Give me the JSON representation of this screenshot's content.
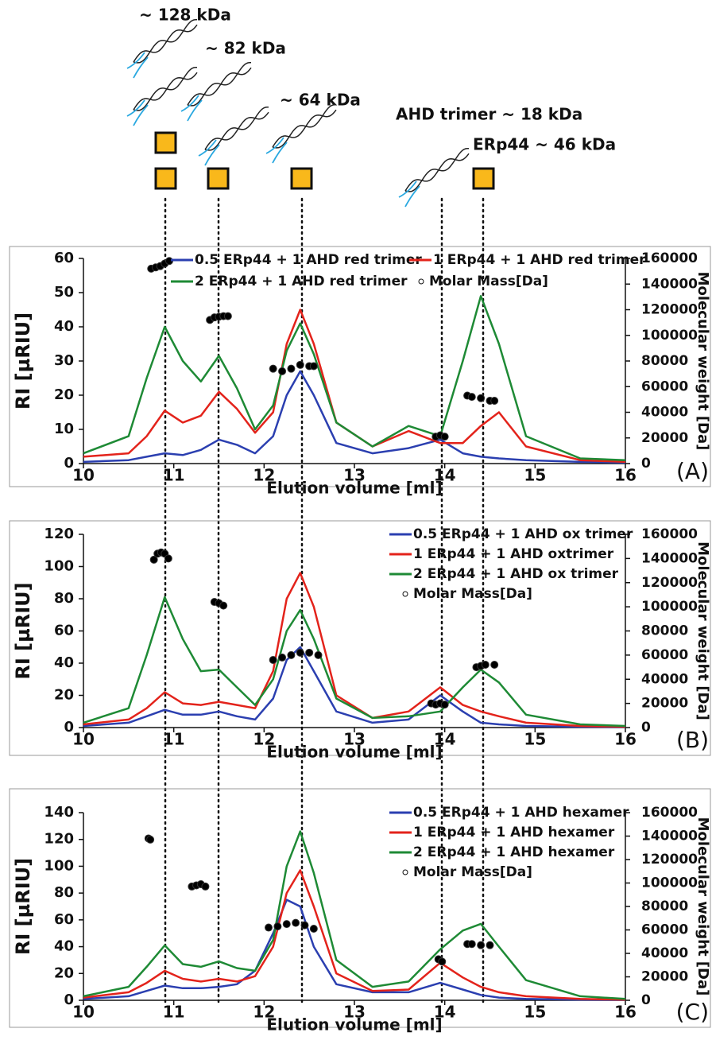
{
  "schematic": {
    "labels": [
      "~ 128 kDa",
      "~ 82 kDa",
      "~ 64 kDa",
      "AHD trimer ~ 18 kDa",
      "ERp44 ~ 46 kDa"
    ]
  },
  "chart_data": [
    {
      "type": "line",
      "panel": "(A)",
      "xlabel": "Elution volume [ml]",
      "ylabel": "RI [µRIU]",
      "y2label": "Molecular weight [Da]",
      "legend": "top",
      "xlim": [
        10,
        16
      ],
      "xticks": [
        10,
        11,
        12,
        13,
        14,
        15,
        16
      ],
      "ylim": [
        0,
        60
      ],
      "yticks": [
        0,
        10,
        20,
        30,
        40,
        50,
        60
      ],
      "y2lim": [
        0,
        160000
      ],
      "y2ticks": [
        0,
        20000,
        40000,
        60000,
        80000,
        100000,
        120000,
        140000,
        160000
      ],
      "x": [
        10,
        10.5,
        10.7,
        10.9,
        11.1,
        11.3,
        11.5,
        11.7,
        11.9,
        12.1,
        12.25,
        12.4,
        12.55,
        12.8,
        13.2,
        13.6,
        13.95,
        14.2,
        14.4,
        14.6,
        14.9,
        15.5,
        16
      ],
      "series": [
        {
          "name": "0.5 ERp44 + 1 AHD red trimer",
          "color": "#2b3fb0",
          "values": [
            0.5,
            1,
            2,
            3,
            2.5,
            4,
            7,
            5.5,
            3,
            8,
            20,
            27,
            20,
            6,
            3,
            4.5,
            7,
            3,
            2,
            1.5,
            1,
            0.5,
            0.3
          ]
        },
        {
          "name": "1 ERp44 + 1 AHD red trimer",
          "color": "#e3231b",
          "values": [
            2,
            3,
            8,
            15.5,
            12,
            14,
            21,
            16,
            9,
            15,
            35,
            45,
            35,
            12,
            5,
            9.5,
            6,
            6,
            11,
            15,
            5,
            1,
            0.5
          ]
        },
        {
          "name": "2 ERp44 + 1 AHD red trimer",
          "color": "#1e8a35",
          "values": [
            3,
            8,
            25,
            40,
            30,
            24,
            31.5,
            22,
            10,
            17,
            33,
            41,
            32,
            12,
            5,
            11,
            8,
            30,
            49,
            35,
            8,
            1.5,
            1
          ]
        },
        {
          "name": "Molar Mass[Da]",
          "type": "scatter",
          "axis": "y2",
          "color": "#000000",
          "x": [
            10.75,
            10.8,
            10.85,
            10.9,
            10.95,
            11.4,
            11.45,
            11.5,
            11.55,
            11.6,
            12.1,
            12.2,
            12.3,
            12.4,
            12.5,
            12.55,
            13.9,
            13.95,
            14.0,
            14.25,
            14.3,
            14.4,
            14.5,
            14.55
          ],
          "values": [
            152000,
            153000,
            154000,
            156000,
            158000,
            112000,
            114000,
            114500,
            115000,
            115000,
            74000,
            72000,
            74000,
            77000,
            76000,
            76000,
            21000,
            22000,
            21000,
            53000,
            52000,
            51000,
            49000,
            49000
          ]
        }
      ]
    },
    {
      "type": "line",
      "panel": "(B)",
      "xlabel": "Elution volume [ml]",
      "ylabel": "RI [µRIU]",
      "y2label": "Molecular weight [Da]",
      "legend": "right",
      "xlim": [
        10,
        16
      ],
      "xticks": [
        10,
        11,
        12,
        13,
        14,
        15,
        16
      ],
      "ylim": [
        0,
        120
      ],
      "yticks": [
        0,
        20,
        40,
        60,
        80,
        100,
        120
      ],
      "y2lim": [
        0,
        160000
      ],
      "y2ticks": [
        0,
        20000,
        40000,
        60000,
        80000,
        100000,
        120000,
        140000,
        160000
      ],
      "x": [
        10,
        10.5,
        10.7,
        10.9,
        11.1,
        11.3,
        11.5,
        11.7,
        11.9,
        12.1,
        12.25,
        12.4,
        12.55,
        12.8,
        13.2,
        13.6,
        13.95,
        14.2,
        14.4,
        14.6,
        14.9,
        15.5,
        16
      ],
      "series": [
        {
          "name": "0.5 ERp44 + 1 AHD ox trimer",
          "color": "#2b3fb0",
          "values": [
            1,
            3,
            7,
            11,
            8,
            8,
            10,
            7,
            5,
            18,
            42,
            50,
            35,
            10,
            3,
            5,
            20,
            10,
            3,
            2,
            1,
            0.5,
            0.3
          ]
        },
        {
          "name": "1 ERp44 + 1 AHD oxtrimer",
          "color": "#e3231b",
          "values": [
            2,
            5,
            12,
            22,
            15,
            14,
            16,
            14,
            12,
            35,
            80,
            96,
            75,
            20,
            6,
            10,
            25,
            14,
            10,
            7,
            3,
            1,
            0.5
          ]
        },
        {
          "name": "2 ERp44 + 1 AHD ox trimer",
          "color": "#1e8a35",
          "values": [
            3,
            12,
            45,
            81,
            55,
            35,
            36,
            25,
            14,
            30,
            60,
            73,
            55,
            18,
            6,
            7,
            10,
            25,
            36,
            28,
            8,
            2,
            1
          ]
        },
        {
          "name": "Molar Mass[Da]",
          "type": "scatter",
          "axis": "y2",
          "color": "#000000",
          "x": [
            10.78,
            10.82,
            10.86,
            10.9,
            10.94,
            11.45,
            11.5,
            11.55,
            12.1,
            12.2,
            12.3,
            12.4,
            12.5,
            12.6,
            13.85,
            13.9,
            13.95,
            14.0,
            14.35,
            14.4,
            14.45,
            14.55
          ],
          "values": [
            139000,
            144000,
            145000,
            144000,
            140000,
            104000,
            103000,
            101000,
            56000,
            58000,
            60000,
            62000,
            62000,
            60000,
            20000,
            19000,
            20000,
            19000,
            50000,
            51000,
            52000,
            52000
          ]
        }
      ]
    },
    {
      "type": "line",
      "panel": "(C)",
      "xlabel": "Elution volume [ml]",
      "ylabel": "RI [µRIU]",
      "y2label": "Molecular weight [Da]",
      "legend": "right",
      "xlim": [
        10,
        16
      ],
      "xticks": [
        10,
        11,
        12,
        13,
        14,
        15,
        16
      ],
      "ylim": [
        0,
        140
      ],
      "yticks": [
        0,
        20,
        40,
        60,
        80,
        100,
        120,
        140
      ],
      "y2lim": [
        0,
        160000
      ],
      "y2ticks": [
        0,
        20000,
        40000,
        60000,
        80000,
        100000,
        120000,
        140000,
        160000
      ],
      "x": [
        10,
        10.5,
        10.7,
        10.9,
        11.1,
        11.3,
        11.5,
        11.7,
        11.9,
        12.1,
        12.25,
        12.4,
        12.55,
        12.8,
        13.2,
        13.6,
        13.95,
        14.2,
        14.4,
        14.6,
        14.9,
        15.5,
        16
      ],
      "series": [
        {
          "name": "0.5 ERp44 + 1 AHD hexamer",
          "color": "#2b3fb0",
          "values": [
            1,
            3,
            7,
            11,
            9,
            9,
            10,
            12,
            22,
            50,
            75,
            70,
            40,
            12,
            6,
            6,
            13,
            8,
            4,
            2,
            1,
            0.5,
            0.3
          ]
        },
        {
          "name": "1 ERp44 + 1 AHD hexamer",
          "color": "#e3231b",
          "values": [
            2,
            6,
            13,
            22,
            16,
            14,
            16,
            14,
            18,
            40,
            80,
            97,
            70,
            20,
            7,
            8,
            28,
            17,
            10,
            6,
            3,
            1,
            0.5
          ]
        },
        {
          "name": "2 ERp44 + 1 AHD hexamer",
          "color": "#1e8a35",
          "values": [
            3,
            10,
            25,
            41,
            27,
            25,
            29,
            24,
            22,
            45,
            100,
            126,
            95,
            30,
            10,
            14,
            38,
            52,
            57,
            40,
            15,
            3,
            1
          ]
        },
        {
          "name": "Molar Mass[Da]",
          "type": "scatter",
          "axis": "y2",
          "color": "#000000",
          "x": [
            10.72,
            10.74,
            11.2,
            11.25,
            11.3,
            11.35,
            12.05,
            12.15,
            12.25,
            12.35,
            12.45,
            12.55,
            13.93,
            13.97,
            14.25,
            14.3,
            14.4,
            14.5
          ],
          "values": [
            138000,
            137000,
            97000,
            98000,
            99000,
            97000,
            62000,
            63000,
            65000,
            66000,
            64000,
            61000,
            35000,
            33000,
            48000,
            48000,
            47000,
            47000
          ]
        }
      ]
    }
  ]
}
